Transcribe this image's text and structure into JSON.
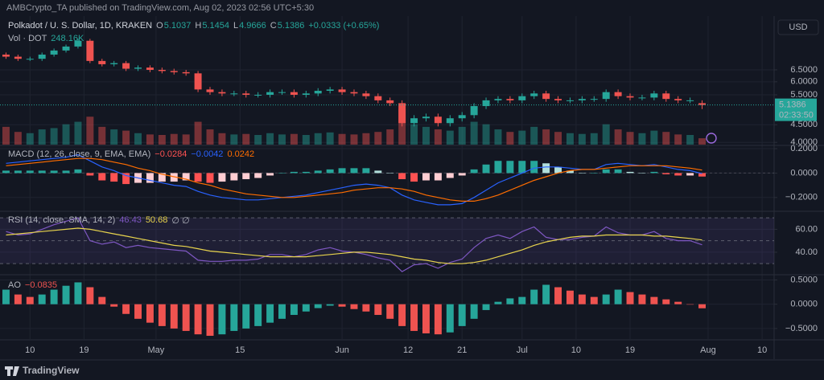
{
  "header": {
    "publisher": "AMBCrypto_TA published on TradingView.com, Aug 02, 2023 02:56 UTC+5:30",
    "symbol": "Polkadot / U. S. Dollar, 1D, KRAKEN",
    "ohlc_labels": [
      "O",
      "H",
      "L",
      "C"
    ],
    "ohlc_values": [
      "5.1037",
      "5.1454",
      "4.9666",
      "5.1386"
    ],
    "change": "+0.0333 (+0.65%)",
    "volume_label": "Vol · DOT",
    "volume_value": "248.16K",
    "currency": "USD",
    "countdown": "02:33:50",
    "brand": "TradingView"
  },
  "x_axis": {
    "xlim": [
      -5,
      124
    ],
    "x": [
      -4,
      -2,
      0,
      2,
      4,
      6,
      8,
      10,
      12,
      14,
      16,
      18,
      20,
      22,
      24,
      26,
      28,
      30,
      32,
      34,
      36,
      38,
      40,
      42,
      44,
      46,
      48,
      50,
      52,
      54,
      56,
      58,
      60,
      62,
      64,
      66,
      68,
      70,
      72,
      74,
      76,
      78,
      80,
      82,
      84,
      86,
      88,
      90,
      92,
      94,
      96,
      98,
      100,
      102,
      104,
      106,
      108,
      110,
      112
    ],
    "xticks": [
      {
        "value": 0,
        "label": "10"
      },
      {
        "value": 9,
        "label": "19"
      },
      {
        "value": 21,
        "label": "May"
      },
      {
        "value": 35,
        "label": "15"
      },
      {
        "value": 52,
        "label": "Jun"
      },
      {
        "value": 63,
        "label": "12"
      },
      {
        "value": 72,
        "label": "21"
      },
      {
        "value": 82,
        "label": "Jul"
      },
      {
        "value": 91,
        "label": "10"
      },
      {
        "value": 100,
        "label": "19"
      },
      {
        "value": 113,
        "label": "Aug"
      },
      {
        "value": 122,
        "label": "10"
      }
    ],
    "grid": true
  },
  "chart_data": [
    {
      "type": "candlestick",
      "log": true,
      "ylim": [
        3.94,
        9.22
      ],
      "yticks": [
        {
          "value": 6.5,
          "label": "6.5000"
        },
        {
          "value": 6,
          "label": "6.0000"
        },
        {
          "value": 5.5,
          "label": "5.5000"
        },
        {
          "value": 4.5,
          "label": "4.5000"
        },
        {
          "value": 4,
          "label": "4.0000"
        }
      ],
      "colors": {
        "up": "#26a69a",
        "down": "#ef5350"
      },
      "open": [
        7.2,
        7.1,
        7.0,
        7.0,
        7.2,
        7.4,
        7.6,
        7.9,
        6.9,
        6.75,
        6.8,
        6.55,
        6.6,
        6.5,
        6.45,
        6.4,
        6.35,
        5.7,
        5.6,
        5.55,
        5.55,
        5.5,
        5.5,
        5.6,
        5.6,
        5.5,
        5.55,
        5.65,
        5.7,
        5.6,
        5.55,
        5.45,
        5.3,
        5.2,
        4.55,
        4.7,
        4.75,
        4.55,
        4.7,
        4.8,
        5.1,
        5.3,
        5.35,
        5.3,
        5.45,
        5.55,
        5.35,
        5.3,
        5.3,
        5.35,
        5.35,
        5.6,
        5.45,
        5.4,
        5.4,
        5.55,
        5.35,
        5.3,
        5.2
      ],
      "high": [
        7.3,
        7.2,
        7.1,
        7.3,
        7.5,
        7.7,
        8.0,
        8.0,
        7.0,
        6.9,
        6.9,
        6.7,
        6.7,
        6.6,
        6.55,
        6.5,
        6.45,
        5.8,
        5.7,
        5.65,
        5.65,
        5.6,
        5.7,
        5.7,
        5.7,
        5.65,
        5.75,
        5.8,
        5.8,
        5.7,
        5.65,
        5.55,
        5.4,
        5.3,
        4.8,
        4.85,
        4.85,
        4.8,
        4.9,
        5.2,
        5.4,
        5.45,
        5.45,
        5.55,
        5.65,
        5.65,
        5.45,
        5.4,
        5.45,
        5.45,
        5.7,
        5.7,
        5.55,
        5.5,
        5.65,
        5.65,
        5.45,
        5.4,
        5.3
      ],
      "low": [
        7.0,
        6.9,
        6.9,
        6.9,
        7.1,
        7.3,
        7.5,
        6.8,
        6.65,
        6.65,
        6.45,
        6.45,
        6.4,
        6.35,
        6.3,
        6.25,
        5.6,
        5.5,
        5.45,
        5.45,
        5.4,
        5.4,
        5.4,
        5.5,
        5.4,
        5.4,
        5.45,
        5.55,
        5.5,
        5.45,
        5.35,
        5.2,
        5.1,
        4.45,
        4.45,
        4.6,
        4.45,
        4.45,
        4.6,
        4.7,
        5.0,
        5.2,
        5.2,
        5.2,
        5.35,
        5.25,
        5.2,
        5.2,
        5.2,
        5.25,
        5.25,
        5.35,
        5.3,
        5.3,
        5.3,
        5.25,
        5.2,
        5.2,
        5.0
      ],
      "close": [
        7.1,
        7.0,
        7.0,
        7.2,
        7.4,
        7.6,
        7.9,
        6.9,
        6.75,
        6.8,
        6.55,
        6.6,
        6.5,
        6.45,
        6.4,
        6.35,
        5.7,
        5.6,
        5.55,
        5.55,
        5.5,
        5.5,
        5.6,
        5.6,
        5.5,
        5.55,
        5.65,
        5.7,
        5.6,
        5.55,
        5.45,
        5.3,
        5.2,
        4.55,
        4.7,
        4.75,
        4.55,
        4.7,
        4.8,
        5.1,
        5.3,
        5.35,
        5.3,
        5.45,
        5.55,
        5.35,
        5.3,
        5.3,
        5.35,
        5.35,
        5.6,
        5.45,
        5.4,
        5.4,
        5.55,
        5.35,
        5.3,
        5.3,
        5.1386
      ],
      "volume": {
        "ylim": [
          0,
          3000
        ],
        "values": [
          700,
          500,
          450,
          600,
          650,
          800,
          900,
          1100,
          700,
          600,
          550,
          450,
          400,
          380,
          420,
          400,
          900,
          600,
          450,
          400,
          420,
          380,
          450,
          400,
          420,
          380,
          450,
          480,
          420,
          400,
          450,
          500,
          600,
          1400,
          800,
          700,
          600,
          550,
          700,
          900,
          800,
          600,
          500,
          550,
          700,
          600,
          500,
          450,
          420,
          450,
          800,
          600,
          500,
          450,
          550,
          500,
          400,
          380,
          250
        ]
      }
    },
    {
      "type": "macd",
      "title": "MACD (12, 26, close, 9, EMA, EMA)",
      "ylim": [
        -0.3,
        0.22
      ],
      "yticks": [
        {
          "value": 0.2,
          "label": "0.2000"
        },
        {
          "value": 0,
          "label": "0.0000"
        },
        {
          "value": -0.2,
          "label": "−0.2000"
        }
      ],
      "colors": {
        "macd": "#2962ff",
        "signal": "#ff6d00",
        "up_grow": "#26a69a",
        "up_fall": "#b2dfdb",
        "down_grow": "#ff5252",
        "down_fall": "#ffcdd2"
      },
      "value_labels": [
        "−0.0284",
        "−0.0042",
        "0.0242"
      ],
      "histogram": [
        0.02,
        0.02,
        0.02,
        0.02,
        0.02,
        0.02,
        0.03,
        -0.02,
        -0.06,
        -0.07,
        -0.09,
        -0.08,
        -0.08,
        -0.07,
        -0.07,
        -0.06,
        -0.07,
        -0.08,
        -0.07,
        -0.06,
        -0.05,
        -0.04,
        -0.02,
        0.0,
        0.01,
        0.01,
        0.02,
        0.03,
        0.04,
        0.04,
        0.04,
        0.02,
        0.0,
        -0.05,
        -0.07,
        -0.06,
        -0.06,
        -0.04,
        -0.02,
        0.03,
        0.07,
        0.1,
        0.1,
        0.1,
        0.1,
        0.08,
        0.05,
        0.02,
        0.0,
        0.0,
        0.03,
        0.03,
        0.01,
        0.0,
        0.01,
        -0.01,
        -0.02,
        -0.02,
        -0.0284
      ],
      "macd": [
        0.08,
        0.09,
        0.1,
        0.11,
        0.12,
        0.13,
        0.15,
        0.1,
        0.05,
        0.02,
        -0.02,
        -0.04,
        -0.06,
        -0.08,
        -0.1,
        -0.11,
        -0.15,
        -0.18,
        -0.2,
        -0.21,
        -0.22,
        -0.22,
        -0.21,
        -0.2,
        -0.19,
        -0.18,
        -0.16,
        -0.14,
        -0.12,
        -0.1,
        -0.09,
        -0.1,
        -0.12,
        -0.18,
        -0.22,
        -0.24,
        -0.26,
        -0.26,
        -0.25,
        -0.2,
        -0.14,
        -0.08,
        -0.04,
        0.0,
        0.04,
        0.05,
        0.05,
        0.04,
        0.03,
        0.03,
        0.07,
        0.08,
        0.07,
        0.06,
        0.07,
        0.05,
        0.03,
        0.02,
        -0.0042
      ],
      "signal": [
        0.06,
        0.07,
        0.08,
        0.09,
        0.1,
        0.11,
        0.12,
        0.12,
        0.11,
        0.09,
        0.07,
        0.04,
        0.02,
        -0.01,
        -0.03,
        -0.05,
        -0.08,
        -0.1,
        -0.13,
        -0.15,
        -0.17,
        -0.18,
        -0.19,
        -0.2,
        -0.2,
        -0.19,
        -0.18,
        -0.17,
        -0.16,
        -0.14,
        -0.13,
        -0.12,
        -0.12,
        -0.13,
        -0.15,
        -0.18,
        -0.2,
        -0.22,
        -0.23,
        -0.23,
        -0.21,
        -0.18,
        -0.14,
        -0.1,
        -0.06,
        -0.03,
        0.0,
        0.02,
        0.03,
        0.03,
        0.04,
        0.05,
        0.06,
        0.06,
        0.06,
        0.06,
        0.05,
        0.04,
        0.0242
      ]
    },
    {
      "type": "rsi",
      "title": "RSI (14, close, SMA, 14, 2)",
      "flags": "∅ ∅",
      "ylim": [
        21,
        75
      ],
      "yticks": [
        {
          "value": 60,
          "label": "60.00"
        },
        {
          "value": 40,
          "label": "40.00"
        }
      ],
      "bands": [
        70,
        50,
        30
      ],
      "colors": {
        "rsi": "#7e57c2",
        "sma": "#e8d44d",
        "band": "rgba(126,87,194,0.12)"
      },
      "value_labels": [
        "46.43",
        "50.68"
      ],
      "rsi": [
        58,
        55,
        56,
        60,
        64,
        67,
        70,
        50,
        47,
        49,
        44,
        46,
        44,
        43,
        42,
        41,
        33,
        32,
        32,
        33,
        33,
        34,
        38,
        38,
        36,
        38,
        42,
        44,
        41,
        40,
        38,
        35,
        33,
        23,
        29,
        30,
        26,
        31,
        34,
        44,
        52,
        55,
        52,
        58,
        62,
        53,
        51,
        51,
        53,
        54,
        62,
        57,
        55,
        55,
        58,
        52,
        50,
        50,
        46.43
      ],
      "sma": [
        55,
        56,
        57,
        58,
        59,
        60,
        61,
        60,
        58,
        56,
        54,
        52,
        50,
        48,
        46,
        45,
        43,
        41,
        40,
        39,
        38,
        37,
        36,
        36,
        36,
        36,
        37,
        38,
        39,
        40,
        40,
        39,
        38,
        36,
        34,
        33,
        31,
        30,
        30,
        31,
        33,
        36,
        39,
        42,
        46,
        49,
        51,
        53,
        54,
        54,
        55,
        55,
        55,
        55,
        54,
        54,
        53,
        52,
        50.68
      ]
    },
    {
      "type": "ao",
      "title": "AO",
      "ylim": [
        -0.7,
        0.59
      ],
      "yticks": [
        {
          "value": 0.5,
          "label": "0.5000"
        },
        {
          "value": 0,
          "label": "0.0000"
        },
        {
          "value": -0.5,
          "label": "−0.5000"
        }
      ],
      "colors": {
        "up": "#26a69a",
        "down": "#ef5350"
      },
      "value_labels": [
        "−0.0835"
      ],
      "values": [
        0.3,
        0.2,
        0.15,
        0.2,
        0.3,
        0.38,
        0.45,
        0.35,
        0.15,
        -0.05,
        -0.2,
        -0.3,
        -0.38,
        -0.45,
        -0.5,
        -0.55,
        -0.62,
        -0.65,
        -0.62,
        -0.55,
        -0.5,
        -0.45,
        -0.38,
        -0.3,
        -0.22,
        -0.15,
        -0.08,
        -0.03,
        -0.05,
        -0.1,
        -0.15,
        -0.22,
        -0.3,
        -0.45,
        -0.55,
        -0.6,
        -0.62,
        -0.58,
        -0.45,
        -0.3,
        -0.12,
        0.05,
        0.12,
        0.15,
        0.3,
        0.4,
        0.35,
        0.28,
        0.2,
        0.15,
        0.2,
        0.3,
        0.25,
        0.2,
        0.15,
        0.1,
        0.05,
        0.0,
        -0.0835
      ]
    }
  ]
}
